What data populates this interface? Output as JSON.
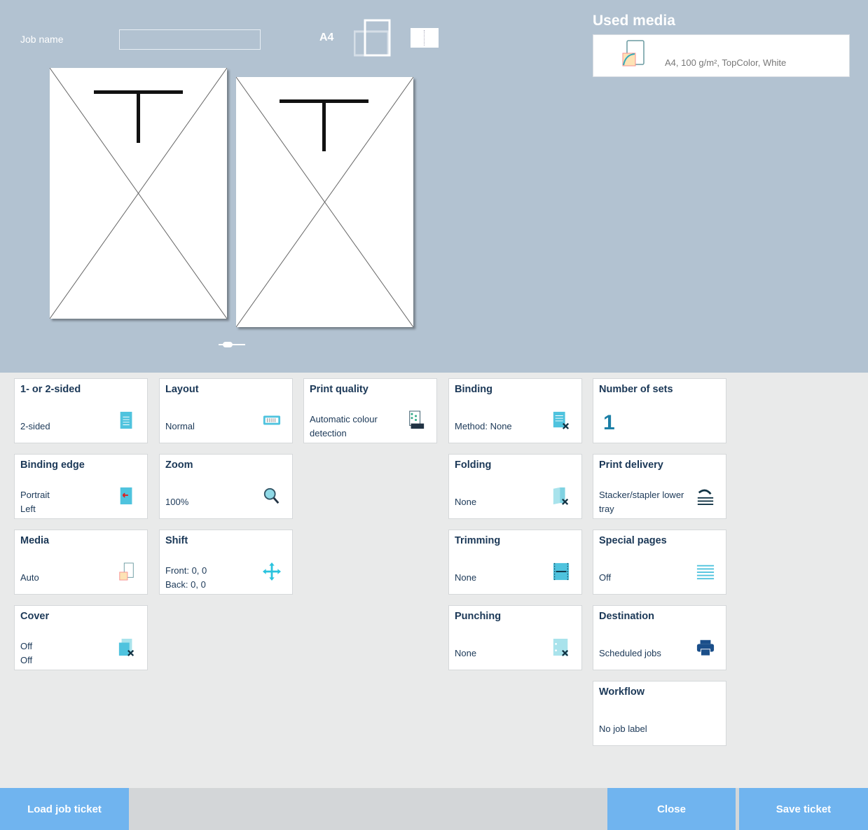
{
  "header": {
    "job_name_label": "Job name",
    "job_name_value": "",
    "paper_size": "A4",
    "used_media_title": "Used media",
    "used_media_value": "A4, 100 g/m², TopColor, White"
  },
  "tiles": [
    {
      "title": "1- or 2-sided",
      "lines": [
        "2-sided"
      ],
      "icon": "two-sided-document-icon"
    },
    {
      "title": "Layout",
      "lines": [
        "Normal"
      ],
      "icon": "layout-icon"
    },
    {
      "title": "Print quality",
      "lines": [
        "Automatic colour",
        "detection"
      ],
      "icon": "print-quality-600-icon"
    },
    {
      "title": "Binding",
      "lines": [
        "Method: None"
      ],
      "icon": "binding-none-icon"
    },
    {
      "title": "Number of sets",
      "lines": [
        "1"
      ],
      "icon": ""
    },
    {
      "title": "Binding edge",
      "lines": [
        "Portrait",
        "Left"
      ],
      "icon": "binding-edge-left-icon"
    },
    {
      "title": "Zoom",
      "lines": [
        "100%"
      ],
      "icon": "magnifier-icon"
    },
    {
      "title": "Folding",
      "lines": [
        "None"
      ],
      "icon": "folding-none-icon"
    },
    {
      "title": "Print delivery",
      "lines": [
        "Stacker/stapler lower",
        "tray"
      ],
      "icon": "delivery-tray-icon"
    },
    {
      "title": "Media",
      "lines": [
        "Auto"
      ],
      "icon": "media-icon"
    },
    {
      "title": "Shift",
      "lines": [
        "Front: 0, 0",
        "Back: 0, 0"
      ],
      "icon": "move-arrows-icon"
    },
    {
      "title": "Trimming",
      "lines": [
        "None"
      ],
      "icon": "trimming-icon"
    },
    {
      "title": "Special pages",
      "lines": [
        "Off"
      ],
      "icon": "special-pages-icon"
    },
    {
      "title": "Cover",
      "lines": [
        "Off",
        "Off"
      ],
      "icon": "cover-none-icon"
    },
    {
      "title": "Punching",
      "lines": [
        "None"
      ],
      "icon": "punching-none-icon"
    },
    {
      "title": "Destination",
      "lines": [
        "Scheduled jobs"
      ],
      "icon": "printer-icon"
    },
    {
      "title": "Workflow",
      "lines": [
        "No job label"
      ],
      "icon": ""
    }
  ],
  "footer": {
    "load": "Load job ticket",
    "close": "Close",
    "save": "Save ticket"
  }
}
